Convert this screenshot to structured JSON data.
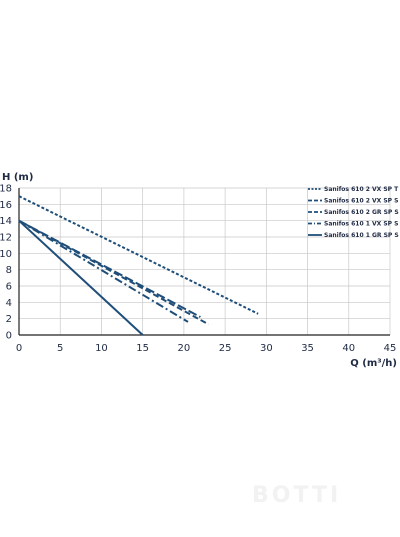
{
  "chart_data": {
    "type": "line",
    "xlabel": "Q (m³/h)",
    "ylabel": "H (m)",
    "xlim": [
      0,
      45
    ],
    "ylim": [
      0,
      18
    ],
    "x_ticks": [
      "0",
      "5",
      "10",
      "15",
      "20",
      "25",
      "30",
      "35",
      "40",
      "45"
    ],
    "y_ticks": [
      "0",
      "2",
      "4",
      "6",
      "8",
      "10",
      "12",
      "14",
      "16",
      "18"
    ],
    "grid": true,
    "legend_position": "top-right",
    "line_color": "#1f4e79",
    "series": [
      {
        "name": "Sanifos 610 2 VX SP T",
        "dash": "dotted",
        "x": [
          0,
          29
        ],
        "y": [
          17,
          2.6
        ]
      },
      {
        "name": "Sanifos 610 2 VX SP S",
        "dash": "dashed",
        "x": [
          0,
          23
        ],
        "y": [
          14,
          1.3
        ]
      },
      {
        "name": "Sanifos 610 2 GR SP S",
        "dash": "long-dash",
        "x": [
          0,
          22
        ],
        "y": [
          14,
          2.2
        ]
      },
      {
        "name": "Sanifos 610 1 VX SP S",
        "dash": "dash-dot",
        "x": [
          0,
          20.5
        ],
        "y": [
          14,
          1.6
        ]
      },
      {
        "name": "Sanifos 610 1 GR SP S",
        "dash": "solid",
        "x": [
          0,
          15
        ],
        "y": [
          14,
          0
        ]
      }
    ]
  },
  "watermark": "BOTTI"
}
